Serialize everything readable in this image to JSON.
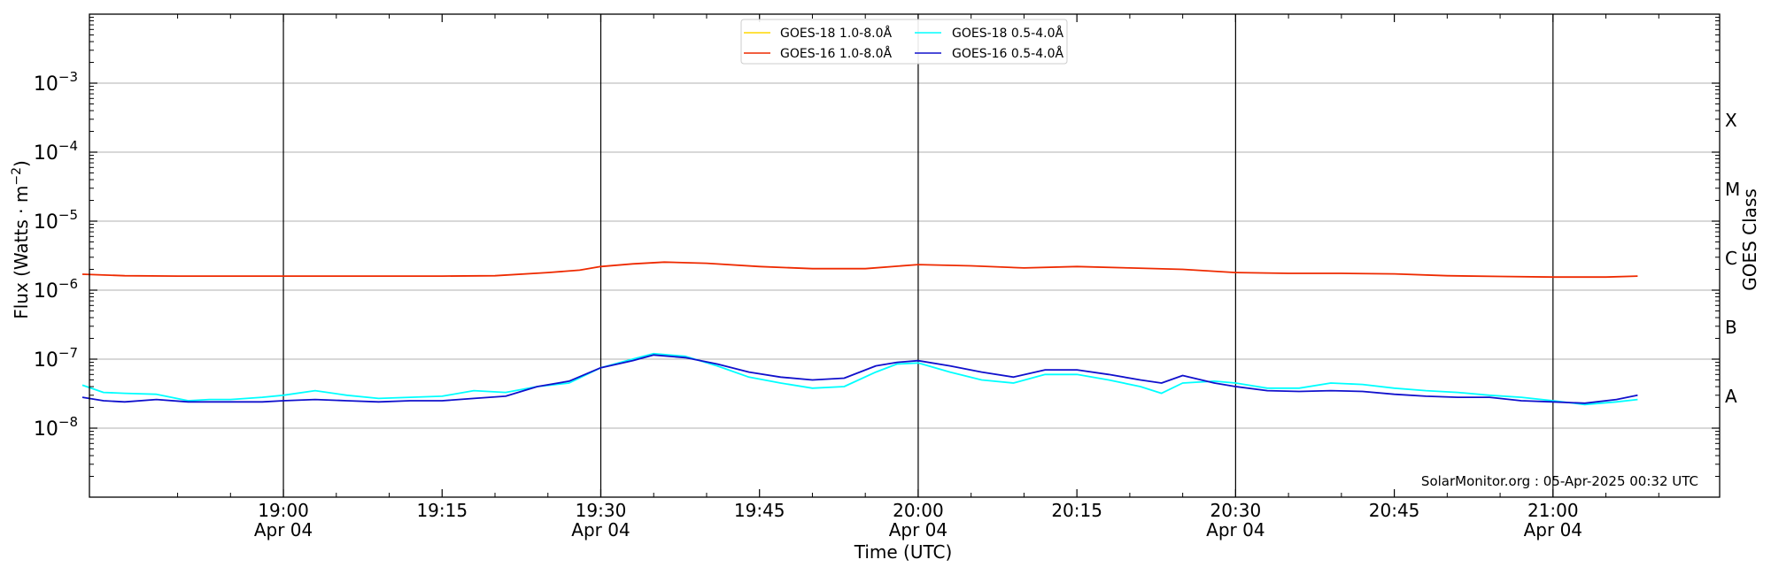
{
  "chart_data": {
    "type": "line",
    "xlabel": "Time (UTC)",
    "ylabel": "Flux (Watts · m",
    "ylabel_exp": "−2",
    "ylabel_close": ")",
    "right_label": "GOES Class",
    "y_scale": "log",
    "ylim": [
      1e-09,
      0.01
    ],
    "xlim": [
      "2025-04-04T18:41:40",
      "2025-04-04T21:15:45"
    ],
    "y_ticks": [
      {
        "value": 1e-08,
        "mantissa": "10",
        "exp": "−8"
      },
      {
        "value": 1e-07,
        "mantissa": "10",
        "exp": "−7"
      },
      {
        "value": 1e-06,
        "mantissa": "10",
        "exp": "−6"
      },
      {
        "value": 1e-05,
        "mantissa": "10",
        "exp": "−5"
      },
      {
        "value": 0.0001,
        "mantissa": "10",
        "exp": "−4"
      },
      {
        "value": 0.001,
        "mantissa": "10",
        "exp": "−3"
      }
    ],
    "x_ticks": [
      {
        "time": "2025-04-04T19:00",
        "label": "19:00",
        "date": "Apr 04",
        "major": true
      },
      {
        "time": "2025-04-04T19:15",
        "label": "19:15",
        "date": "",
        "major": false
      },
      {
        "time": "2025-04-04T19:30",
        "label": "19:30",
        "date": "Apr 04",
        "major": true
      },
      {
        "time": "2025-04-04T19:45",
        "label": "19:45",
        "date": "",
        "major": false
      },
      {
        "time": "2025-04-04T20:00",
        "label": "20:00",
        "date": "Apr 04",
        "major": true
      },
      {
        "time": "2025-04-04T20:15",
        "label": "20:15",
        "date": "",
        "major": false
      },
      {
        "time": "2025-04-04T20:30",
        "label": "20:30",
        "date": "Apr 04",
        "major": true
      },
      {
        "time": "2025-04-04T20:45",
        "label": "20:45",
        "date": "",
        "major": false
      },
      {
        "time": "2025-04-04T21:00",
        "label": "21:00",
        "date": "Apr 04",
        "major": true
      }
    ],
    "goes_classes": [
      {
        "label": "A",
        "value": 3e-08
      },
      {
        "label": "B",
        "value": 3e-07
      },
      {
        "label": "C",
        "value": 3e-06
      },
      {
        "label": "M",
        "value": 3e-05
      },
      {
        "label": "X",
        "value": 0.0003
      }
    ],
    "grid": true,
    "legend_position": "top-center",
    "annotation": "SolarMonitor.org : 05-Apr-2025 00:32 UTC",
    "series": [
      {
        "name": "GOES-18 1.0-8.0Å",
        "color": "#ffd700",
        "x": [],
        "y": []
      },
      {
        "name": "GOES-16 1.0-8.0Å",
        "color": "#ee2a00",
        "x": [
          "18:41",
          "18:45",
          "18:50",
          "18:55",
          "19:00",
          "19:05",
          "19:10",
          "19:15",
          "19:20",
          "19:25",
          "19:28",
          "19:30",
          "19:33",
          "19:36",
          "19:40",
          "19:45",
          "19:50",
          "19:55",
          "20:00",
          "20:05",
          "20:10",
          "20:15",
          "20:20",
          "20:25",
          "20:30",
          "20:35",
          "20:40",
          "20:45",
          "20:50",
          "20:55",
          "21:00",
          "21:05",
          "21:08"
        ],
        "y": [
          1.7e-06,
          1.62e-06,
          1.6e-06,
          1.6e-06,
          1.6e-06,
          1.6e-06,
          1.6e-06,
          1.6e-06,
          1.62e-06,
          1.8e-06,
          1.95e-06,
          2.2e-06,
          2.4e-06,
          2.55e-06,
          2.45e-06,
          2.2e-06,
          2.05e-06,
          2.05e-06,
          2.35e-06,
          2.25e-06,
          2.1e-06,
          2.2e-06,
          2.1e-06,
          2e-06,
          1.8e-06,
          1.75e-06,
          1.75e-06,
          1.72e-06,
          1.62e-06,
          1.58e-06,
          1.55e-06,
          1.55e-06,
          1.6e-06
        ]
      },
      {
        "name": "GOES-18 0.5-4.0Å",
        "color": "#00ffff",
        "x": [
          "18:41",
          "18:43",
          "18:45",
          "18:48",
          "18:51",
          "18:53",
          "18:55",
          "18:58",
          "19:00",
          "19:03",
          "19:06",
          "19:09",
          "19:12",
          "19:15",
          "19:18",
          "19:21",
          "19:24",
          "19:27",
          "19:30",
          "19:33",
          "19:35",
          "19:38",
          "19:41",
          "19:44",
          "19:47",
          "19:50",
          "19:53",
          "19:56",
          "19:58",
          "20:00",
          "20:03",
          "20:06",
          "20:09",
          "20:12",
          "20:15",
          "20:18",
          "20:21",
          "20:23",
          "20:25",
          "20:28",
          "20:30",
          "20:33",
          "20:36",
          "20:39",
          "20:42",
          "20:45",
          "20:48",
          "20:51",
          "20:54",
          "20:57",
          "21:00",
          "21:03",
          "21:06",
          "21:08"
        ],
        "y": [
          4.2e-08,
          3.3e-08,
          3.2e-08,
          3.1e-08,
          2.5e-08,
          2.6e-08,
          2.6e-08,
          2.8e-08,
          3e-08,
          3.5e-08,
          3e-08,
          2.7e-08,
          2.8e-08,
          2.9e-08,
          3.5e-08,
          3.3e-08,
          4e-08,
          4.5e-08,
          7.5e-08,
          1e-07,
          1.2e-07,
          1.1e-07,
          8e-08,
          5.5e-08,
          4.5e-08,
          3.8e-08,
          4e-08,
          6.5e-08,
          8.5e-08,
          8.8e-08,
          6.5e-08,
          5e-08,
          4.5e-08,
          6e-08,
          6e-08,
          5e-08,
          4e-08,
          3.2e-08,
          4.5e-08,
          4.8e-08,
          4.5e-08,
          3.8e-08,
          3.8e-08,
          4.5e-08,
          4.3e-08,
          3.8e-08,
          3.5e-08,
          3.3e-08,
          3e-08,
          2.8e-08,
          2.5e-08,
          2.2e-08,
          2.4e-08,
          2.6e-08
        ]
      },
      {
        "name": "GOES-16 0.5-4.0Å",
        "color": "#1010cc",
        "x": [
          "18:41",
          "18:43",
          "18:45",
          "18:48",
          "18:51",
          "18:53",
          "18:55",
          "18:58",
          "19:00",
          "19:03",
          "19:06",
          "19:09",
          "19:12",
          "19:15",
          "19:18",
          "19:21",
          "19:24",
          "19:27",
          "19:30",
          "19:33",
          "19:35",
          "19:38",
          "19:41",
          "19:44",
          "19:47",
          "19:50",
          "19:53",
          "19:56",
          "19:58",
          "20:00",
          "20:03",
          "20:06",
          "20:09",
          "20:12",
          "20:15",
          "20:18",
          "20:21",
          "20:23",
          "20:25",
          "20:28",
          "20:30",
          "20:33",
          "20:36",
          "20:39",
          "20:42",
          "20:45",
          "20:48",
          "20:51",
          "20:54",
          "20:57",
          "21:00",
          "21:03",
          "21:06",
          "21:08"
        ],
        "y": [
          2.8e-08,
          2.5e-08,
          2.4e-08,
          2.6e-08,
          2.4e-08,
          2.4e-08,
          2.4e-08,
          2.4e-08,
          2.5e-08,
          2.6e-08,
          2.5e-08,
          2.4e-08,
          2.5e-08,
          2.5e-08,
          2.7e-08,
          2.9e-08,
          4e-08,
          4.8e-08,
          7.5e-08,
          9.5e-08,
          1.15e-07,
          1.05e-07,
          8.5e-08,
          6.5e-08,
          5.5e-08,
          5e-08,
          5.3e-08,
          8e-08,
          9e-08,
          9.5e-08,
          8e-08,
          6.5e-08,
          5.5e-08,
          7e-08,
          7e-08,
          6e-08,
          5e-08,
          4.5e-08,
          5.8e-08,
          4.5e-08,
          4e-08,
          3.5e-08,
          3.4e-08,
          3.5e-08,
          3.4e-08,
          3.1e-08,
          2.9e-08,
          2.8e-08,
          2.8e-08,
          2.5e-08,
          2.4e-08,
          2.3e-08,
          2.6e-08,
          3e-08
        ]
      }
    ]
  }
}
